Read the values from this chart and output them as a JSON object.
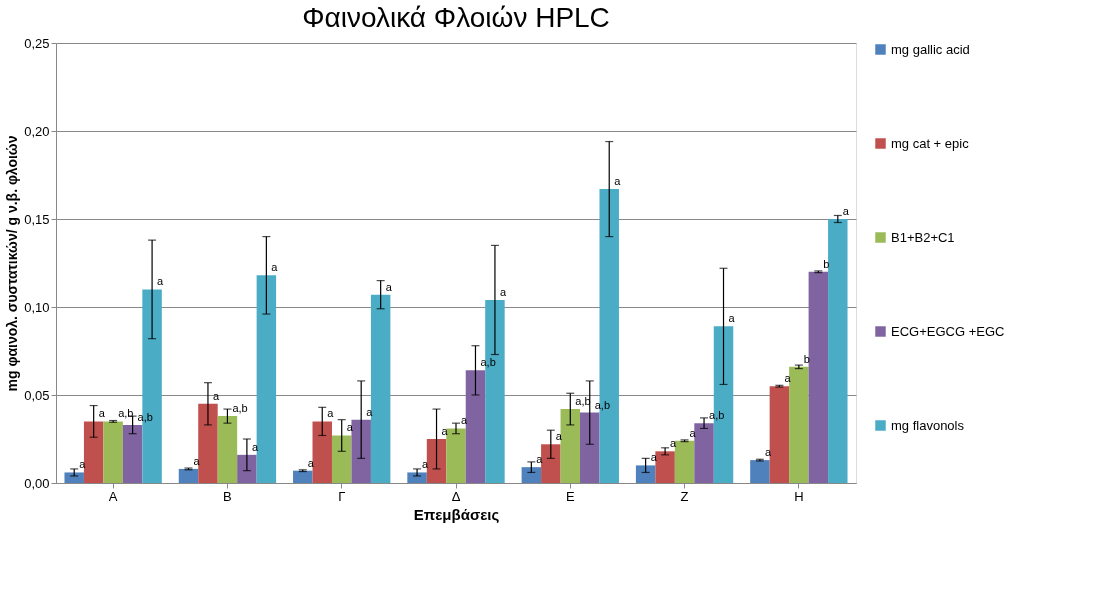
{
  "chart_data": {
    "type": "bar",
    "title": "Φαινολικά Φλοιών HPLC",
    "xlabel": "Επεμβάσεις",
    "ylabel": "mg φαινολ. συστατικών/ g ν.β. φλοιών",
    "categories": [
      "Α",
      "Β",
      "Γ",
      "Δ",
      "Ε",
      "Ζ",
      "Η"
    ],
    "ylim": [
      0,
      0.25
    ],
    "yticks": [
      {
        "value": 0,
        "label": "0,00"
      },
      {
        "value": 0.05,
        "label": "0,05"
      },
      {
        "value": 0.1,
        "label": "0,10"
      },
      {
        "value": 0.15,
        "label": "0,15"
      },
      {
        "value": 0.2,
        "label": "0,20"
      },
      {
        "value": 0.25,
        "label": "0,25"
      }
    ],
    "grid": "y",
    "legend": "right",
    "series": [
      {
        "name": "mg gallic acid",
        "color": "#4f81bd",
        "values": [
          0.006,
          0.008,
          0.007,
          0.006,
          0.009,
          0.01,
          0.013
        ],
        "errors": [
          0.002,
          0.0005,
          0.0005,
          0.002,
          0.003,
          0.004,
          0.0005
        ],
        "value_labels": [
          "a",
          "a",
          "a",
          "a",
          "a",
          "a",
          "a"
        ]
      },
      {
        "name": "mg cat + epic",
        "color": "#c0504d",
        "values": [
          0.035,
          0.045,
          0.035,
          0.025,
          0.022,
          0.018,
          0.055
        ],
        "errors": [
          0.009,
          0.012,
          0.008,
          0.017,
          0.008,
          0.002,
          0.0005
        ],
        "value_labels": [
          "a",
          "a",
          "a",
          "a",
          "a",
          "a",
          "a"
        ]
      },
      {
        "name": "B1+B2+C1",
        "color": "#9bbb59",
        "values": [
          0.035,
          0.038,
          0.027,
          0.031,
          0.042,
          0.024,
          0.066
        ],
        "errors": [
          0.0005,
          0.004,
          0.009,
          0.003,
          0.009,
          0.0005,
          0.001
        ],
        "value_labels": [
          "a,b",
          "a,b",
          "a",
          "a",
          "a,b",
          "a",
          "b"
        ]
      },
      {
        "name": "ECG+EGCG +EGC",
        "color": "#8064a2",
        "values": [
          0.033,
          0.016,
          0.036,
          0.064,
          0.04,
          0.034,
          0.12
        ],
        "errors": [
          0.005,
          0.009,
          0.022,
          0.014,
          0.018,
          0.003,
          0.0005
        ],
        "value_labels": [
          "a,b",
          "a",
          "a",
          "a,b",
          "a,b",
          "a,b",
          "b"
        ]
      },
      {
        "name": "mg flavonols",
        "color": "#4bacc6",
        "values": [
          0.11,
          0.118,
          0.107,
          0.104,
          0.167,
          0.089,
          0.15
        ],
        "errors": [
          0.028,
          0.022,
          0.008,
          0.031,
          0.027,
          0.033,
          0.002
        ],
        "value_labels": [
          "a",
          "a",
          "a",
          "a",
          "a",
          "a",
          "a"
        ]
      }
    ]
  }
}
